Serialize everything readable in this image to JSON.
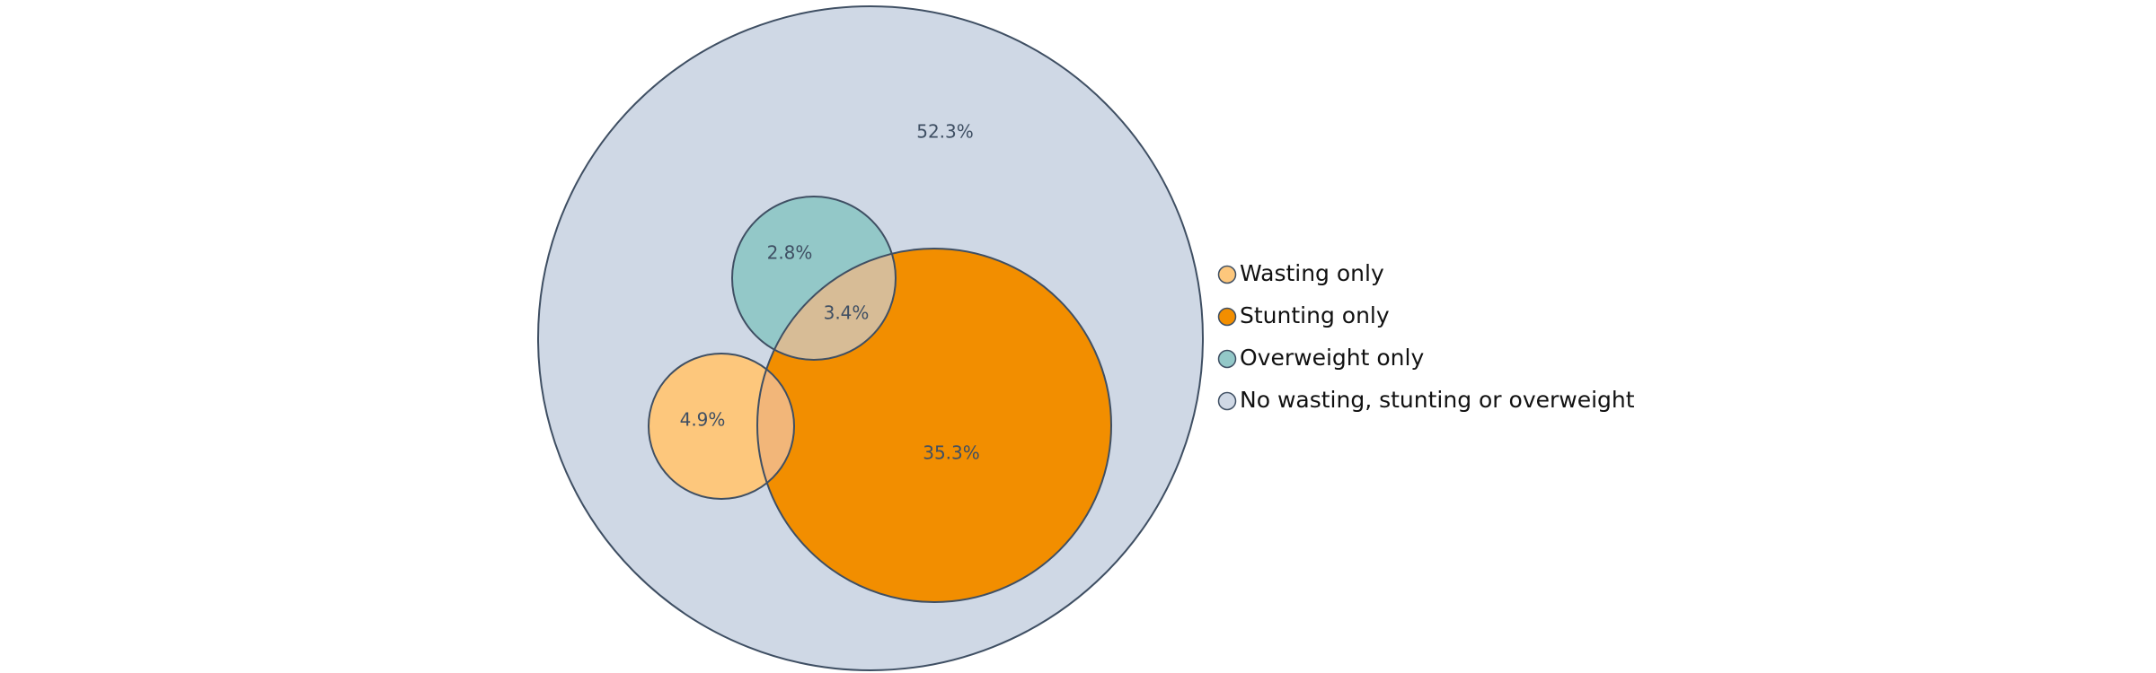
{
  "chart_data": {
    "type": "venn",
    "title": "",
    "sets": [
      {
        "key": "none",
        "name": "No wasting, stunting or overweight",
        "color": "#cfd8e5"
      },
      {
        "key": "overweight",
        "name": "Overweight only",
        "color": "#93c8c8"
      },
      {
        "key": "wasting",
        "name": "Wasting only",
        "color": "#fdc77c"
      },
      {
        "key": "stunting",
        "name": "Stunting only",
        "color": "#f28e00"
      }
    ],
    "regions": [
      {
        "key": "none",
        "label": "52.3%",
        "value": 52.3
      },
      {
        "key": "overweight",
        "label": "2.8%",
        "value": 2.8
      },
      {
        "key": "overweight_stunting",
        "label": "3.4%",
        "value": 3.4
      },
      {
        "key": "wasting",
        "label": "4.9%",
        "value": 4.9
      },
      {
        "key": "stunting",
        "label": "35.3%",
        "value": 35.3
      }
    ],
    "overlap_colors": {
      "overweight_stunting": "#d7bc96",
      "wasting_stunting": "#f2b679"
    },
    "legend": {
      "position": "right",
      "items": [
        "Wasting only",
        "Stunting only",
        "Overweight only",
        "No wasting, stunting or overweight"
      ],
      "marker_colors": [
        "#fdc77c",
        "#f28e00",
        "#93c8c8",
        "#cfd8e5"
      ]
    },
    "stroke_color": "#3f4f63"
  }
}
